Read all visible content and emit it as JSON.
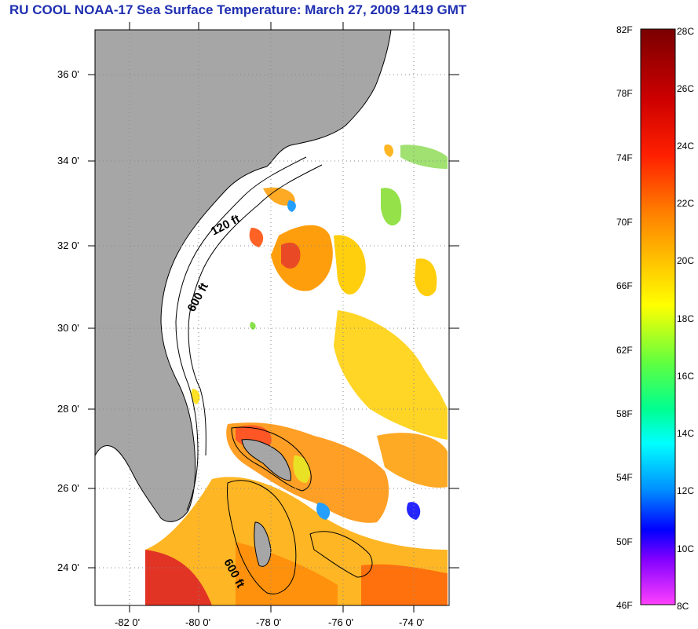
{
  "title": "RU COOL  NOAA-17  Sea Surface Temperature:  March 27, 2009 1419 GMT",
  "map": {
    "lon_range": [
      -83,
      -73
    ],
    "lat_range": [
      23,
      37
    ],
    "lat_ticks": [
      {
        "value": 36,
        "label": "36 0'"
      },
      {
        "value": 34,
        "label": "34 0'"
      },
      {
        "value": 32,
        "label": "32 0'"
      },
      {
        "value": 30,
        "label": "30 0'"
      },
      {
        "value": 28,
        "label": "28 0'"
      },
      {
        "value": 26,
        "label": "26 0'"
      },
      {
        "value": 24,
        "label": "24 0'"
      }
    ],
    "lon_ticks": [
      {
        "value": -82,
        "label": "-82 0'"
      },
      {
        "value": -80,
        "label": "-80 0'"
      },
      {
        "value": -78,
        "label": "-78 0'"
      },
      {
        "value": -76,
        "label": "-76 0'"
      },
      {
        "value": -74,
        "label": "-74 0'"
      }
    ],
    "isobath_labels": [
      "120 ft",
      "600 ft",
      "600 ft"
    ],
    "colors": {
      "land": "#a6a6a6",
      "ocean": "#ffffff",
      "grid": "#888888"
    }
  },
  "colorbar": {
    "f_labels": [
      "82F",
      "78F",
      "74F",
      "70F",
      "66F",
      "62F",
      "58F",
      "54F",
      "50F",
      "46F"
    ],
    "c_labels": [
      "28C",
      "26C",
      "24C",
      "22C",
      "20C",
      "18C",
      "16C",
      "14C",
      "12C",
      "10C",
      "8C"
    ],
    "colors_top_to_bottom": [
      "#7a0000",
      "#ff0000",
      "#ff8000",
      "#ffff00",
      "#00ff40",
      "#00ffff",
      "#0050ff",
      "#0000ff",
      "#8000ff",
      "#ff40ff"
    ]
  }
}
